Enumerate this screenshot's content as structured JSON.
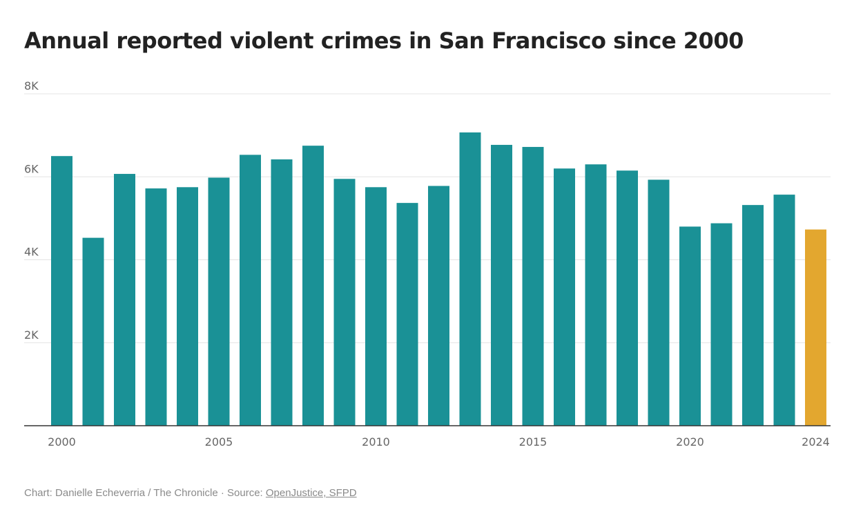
{
  "chart_data": {
    "type": "bar",
    "title": "Annual reported violent crimes in San Francisco since 2000",
    "xlabel": "",
    "ylabel": "",
    "ylim": [
      0,
      8000
    ],
    "yticks": [
      2000,
      4000,
      6000,
      8000
    ],
    "ytick_labels": [
      "2K",
      "4K",
      "6K",
      "8K"
    ],
    "xtick_labels": [
      "2000",
      "2005",
      "2010",
      "2015",
      "2020",
      "2024"
    ],
    "grid": true,
    "categories": [
      2000,
      2001,
      2002,
      2003,
      2004,
      2005,
      2006,
      2007,
      2008,
      2009,
      2010,
      2011,
      2012,
      2013,
      2014,
      2015,
      2016,
      2017,
      2018,
      2019,
      2020,
      2021,
      2022,
      2023,
      2024
    ],
    "values": [
      6500,
      4530,
      6070,
      5720,
      5750,
      5980,
      6530,
      6420,
      6750,
      5950,
      5750,
      5370,
      5780,
      7070,
      6770,
      6720,
      6200,
      6300,
      6150,
      5930,
      4800,
      4880,
      5320,
      5570,
      4730
    ],
    "colors": {
      "default": "#1a9196",
      "highlight": "#e3a72f"
    },
    "highlight": [
      2024
    ]
  },
  "footer": {
    "credit": "Chart: Danielle Echeverria / The Chronicle · Source: ",
    "source_link": "OpenJustice, SFPD"
  }
}
